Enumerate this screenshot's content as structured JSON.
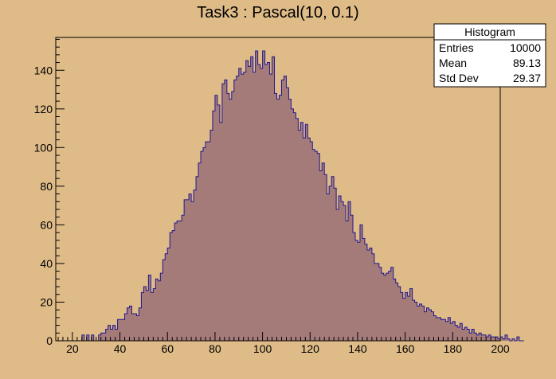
{
  "chart_data": {
    "type": "bar",
    "title": "Task3 : Pascal(10, 0.1)",
    "xlabel": "",
    "ylabel": "",
    "xlim": [
      13,
      200
    ],
    "ylim": [
      0,
      157
    ],
    "x_ticks": [
      "20",
      "40",
      "60",
      "80",
      "100",
      "120",
      "140",
      "160",
      "180",
      "200"
    ],
    "y_ticks": [
      "0",
      "20",
      "40",
      "60",
      "80",
      "100",
      "120",
      "140"
    ],
    "bin_width": 1,
    "first_bin_low_edge": 13,
    "series": [
      {
        "values": [
          0,
          0,
          0,
          0,
          0,
          0,
          0,
          0,
          0,
          0,
          0,
          3,
          0,
          3,
          0,
          3,
          0,
          0,
          3,
          4,
          4,
          6,
          8,
          6,
          8,
          6,
          11,
          11,
          11,
          14,
          17,
          18,
          14,
          14,
          13,
          17,
          25,
          28,
          26,
          34,
          25,
          27,
          32,
          31,
          35,
          42,
          45,
          48,
          56,
          57,
          61,
          62,
          62,
          65,
          73,
          73,
          76,
          72,
          78,
          85,
          92,
          98,
          100,
          103,
          103,
          109,
          119,
          127,
          122,
          113,
          133,
          135,
          128,
          125,
          129,
          135,
          137,
          141,
          138,
          139,
          145,
          142,
          147,
          139,
          150,
          143,
          141,
          150,
          143,
          144,
          138,
          147,
          128,
          125,
          127,
          135,
          137,
          131,
          125,
          120,
          118,
          115,
          109,
          113,
          105,
          112,
          105,
          103,
          99,
          98,
          97,
          88,
          92,
          86,
          76,
          80,
          85,
          79,
          68,
          75,
          72,
          70,
          62,
          72,
          65,
          56,
          52,
          51,
          60,
          53,
          50,
          47,
          48,
          45,
          40,
          40,
          38,
          35,
          34,
          35,
          36,
          38,
          32,
          30,
          28,
          25,
          22,
          25,
          23,
          27,
          21,
          20,
          18,
          19,
          18,
          15,
          17,
          16,
          15,
          13,
          12,
          12,
          11,
          11,
          10,
          12,
          9,
          10,
          8,
          7,
          9,
          6,
          7,
          6,
          4,
          6,
          4,
          3,
          4,
          3,
          3,
          2,
          3,
          2,
          2,
          2,
          1,
          2,
          1,
          3,
          1,
          0,
          1,
          0,
          2,
          0,
          0
        ]
      }
    ],
    "colors": {
      "fill": "#a57b7a",
      "line": "#1f1790",
      "background": "#dfbb88",
      "frame": "#000000"
    }
  },
  "stats_box": {
    "title": "Histogram",
    "rows": [
      {
        "label": "Entries",
        "value": "10000"
      },
      {
        "label": "Mean",
        "value": "89.13"
      },
      {
        "label": "Std Dev",
        "value": "29.37"
      }
    ]
  }
}
